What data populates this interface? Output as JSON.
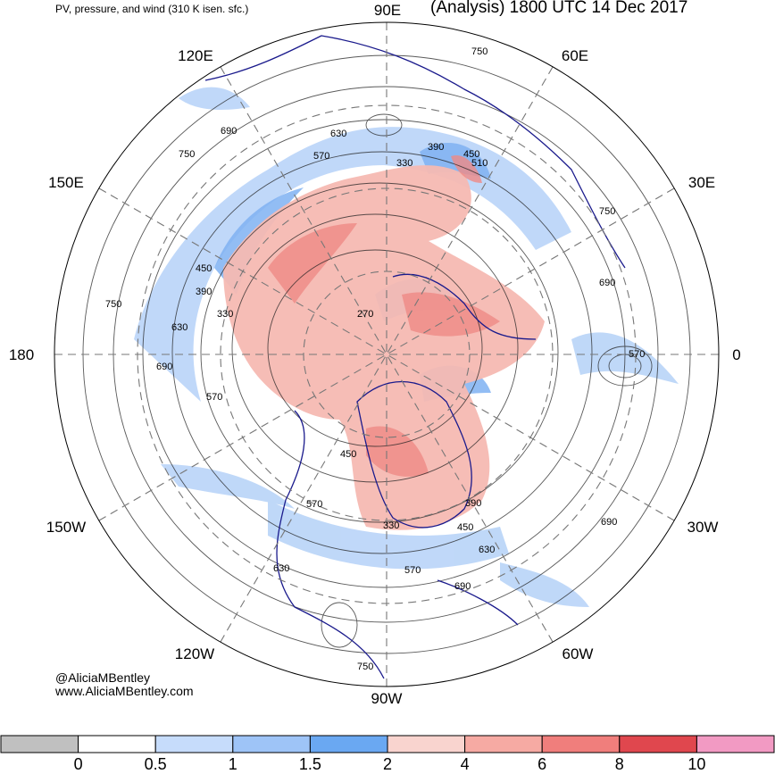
{
  "header": {
    "subtitle": "PV, pressure, and wind (310 K isen. sfc.)",
    "title": "(Analysis) 1800 UTC 14 Dec 2017"
  },
  "longitude_labels": [
    "90E",
    "60E",
    "30E",
    "0",
    "30W",
    "60W",
    "90W",
    "120W",
    "150W",
    "180",
    "150E",
    "120E"
  ],
  "pressure_contour_labels": [
    "750",
    "690",
    "630",
    "570",
    "510",
    "450",
    "390",
    "330",
    "270"
  ],
  "credits": {
    "handle": "@AliciaMBentley",
    "url": "www.AliciaMBentley.com"
  },
  "colorbar": {
    "colors": [
      "#c0c0c0",
      "#ffffff",
      "#c6dcfb",
      "#9ec4f7",
      "#6aa8f2",
      "#f9d4cf",
      "#f6aaa3",
      "#f07e7c",
      "#e0474e",
      "#f29ac3"
    ],
    "labels": [
      "0",
      "0.5",
      "1",
      "1.5",
      "2",
      "4",
      "6",
      "8",
      "10"
    ]
  }
}
